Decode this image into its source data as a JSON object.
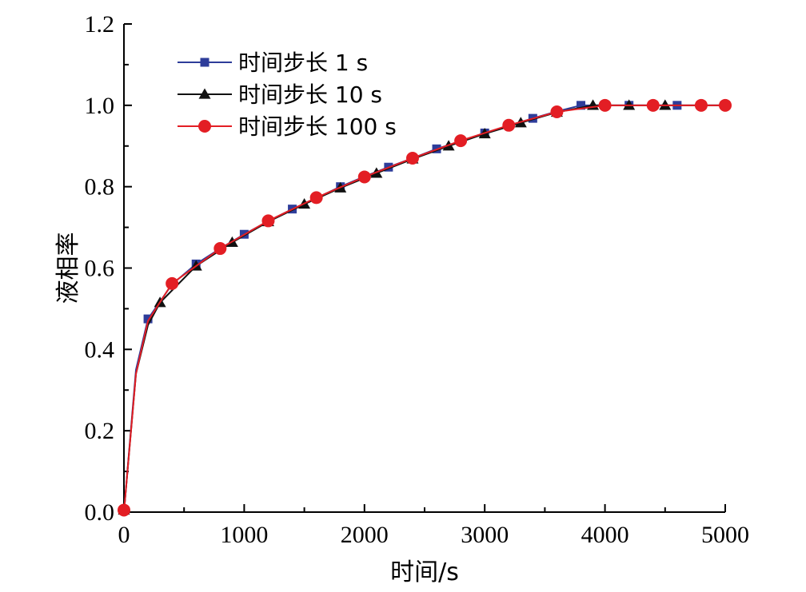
{
  "chart_data": {
    "type": "line",
    "title": "",
    "xlabel": "时间/s",
    "ylabel": "液相率",
    "xlim": [
      0,
      5000
    ],
    "ylim": [
      0,
      1.2
    ],
    "xticks": [
      0,
      1000,
      2000,
      3000,
      4000,
      5000
    ],
    "yticks": [
      0.0,
      0.2,
      0.4,
      0.6,
      0.8,
      1.0,
      1.2
    ],
    "xtick_labels": [
      "0",
      "1000",
      "2000",
      "3000",
      "4000",
      "5000"
    ],
    "ytick_labels": [
      "0.0",
      "0.2",
      "0.4",
      "0.6",
      "0.8",
      "1.0",
      "1.2"
    ],
    "grid": false,
    "legend_position": "top-left",
    "series": [
      {
        "name": "时间步长 1 s",
        "color": "#2e3d9a",
        "marker": "square",
        "line_x": [
          0,
          100,
          200,
          400,
          600,
          800,
          1000,
          1200,
          1400,
          1600,
          1800,
          2000,
          2200,
          2400,
          2600,
          2800,
          3000,
          3200,
          3400,
          3600,
          3800,
          4000,
          4200,
          4400,
          4600,
          4800,
          5000
        ],
        "line_y": [
          0.0,
          0.35,
          0.475,
          0.56,
          0.61,
          0.648,
          0.683,
          0.715,
          0.745,
          0.772,
          0.8,
          0.825,
          0.848,
          0.87,
          0.893,
          0.912,
          0.932,
          0.95,
          0.968,
          0.985,
          1.0,
          1.0,
          1.0,
          1.0,
          1.0,
          1.0,
          1.0
        ],
        "marker_x": [
          0,
          200,
          600,
          1000,
          1400,
          1800,
          2200,
          2600,
          3000,
          3400,
          3800,
          4200,
          4600
        ],
        "marker_y": [
          0.005,
          0.475,
          0.61,
          0.683,
          0.745,
          0.8,
          0.848,
          0.893,
          0.932,
          0.968,
          1.0,
          1.0,
          1.0
        ]
      },
      {
        "name": "时间步长 10 s",
        "color": "#111111",
        "marker": "triangle",
        "line_x": [
          0,
          100,
          200,
          300,
          600,
          900,
          1200,
          1500,
          1800,
          2100,
          2400,
          2700,
          3000,
          3300,
          3600,
          3900,
          4200,
          4500,
          4800,
          5000
        ],
        "line_y": [
          0.0,
          0.34,
          0.46,
          0.515,
          0.605,
          0.663,
          0.714,
          0.757,
          0.797,
          0.833,
          0.868,
          0.9,
          0.93,
          0.957,
          0.983,
          1.0,
          1.0,
          1.0,
          1.0,
          1.0
        ],
        "marker_x": [
          0,
          300,
          600,
          900,
          1200,
          1500,
          1800,
          2100,
          2400,
          2700,
          3000,
          3300,
          3600,
          3900,
          4200,
          4500
        ],
        "marker_y": [
          0.005,
          0.515,
          0.605,
          0.663,
          0.714,
          0.757,
          0.797,
          0.833,
          0.868,
          0.9,
          0.93,
          0.957,
          0.983,
          1.0,
          1.0,
          1.0
        ]
      },
      {
        "name": "时间步长 100 s",
        "color": "#e31e24",
        "marker": "circle",
        "line_x": [
          0,
          100,
          200,
          400,
          800,
          1200,
          1600,
          2000,
          2400,
          2800,
          3200,
          3600,
          4000,
          4400,
          4800,
          5000
        ],
        "line_y": [
          0.0,
          0.34,
          0.47,
          0.562,
          0.648,
          0.716,
          0.773,
          0.824,
          0.87,
          0.913,
          0.951,
          0.984,
          1.0,
          1.0,
          1.0,
          1.0
        ],
        "marker_x": [
          0,
          400,
          800,
          1200,
          1600,
          2000,
          2400,
          2800,
          3200,
          3600,
          4000,
          4400,
          4800,
          5000
        ],
        "marker_y": [
          0.005,
          0.562,
          0.648,
          0.716,
          0.773,
          0.824,
          0.87,
          0.913,
          0.951,
          0.984,
          1.0,
          1.0,
          1.0,
          1.0
        ]
      }
    ]
  }
}
